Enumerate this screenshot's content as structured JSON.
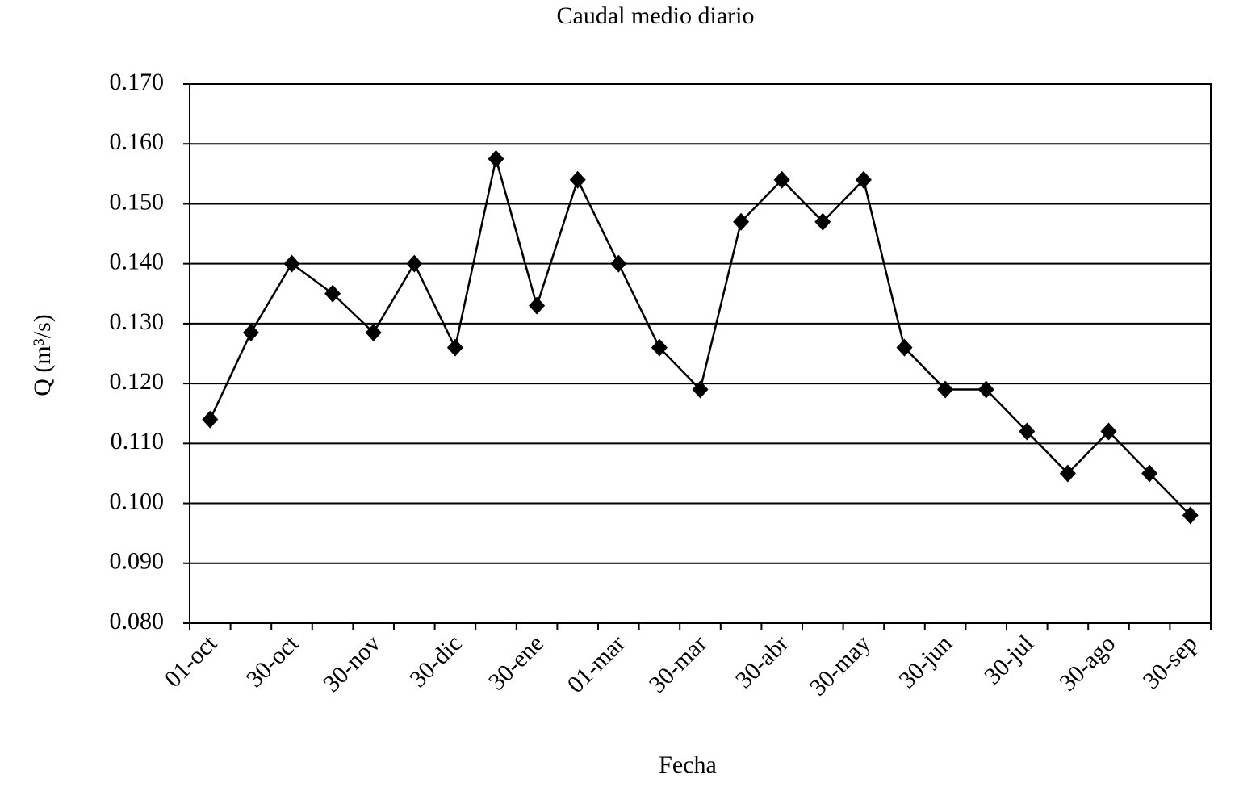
{
  "chart_data": {
    "type": "line",
    "title": "Caudal medio diario",
    "x_label": "Fecha",
    "y_label": "Q (m³/s)",
    "categories": [
      "01-oct",
      null,
      "30-oct",
      null,
      "30-nov",
      null,
      "30-dic",
      null,
      "30-ene",
      null,
      "01-mar",
      null,
      "30-mar",
      null,
      "30-abr",
      null,
      "30-may",
      null,
      "30-jun",
      null,
      "30-jul",
      null,
      "30-ago",
      null,
      "30-sep"
    ],
    "series": [
      {
        "name": "Caudal",
        "color": "#000000",
        "values": [
          0.114,
          0.1285,
          0.14,
          0.135,
          0.1285,
          0.14,
          0.126,
          0.1575,
          0.133,
          0.154,
          0.14,
          0.126,
          0.119,
          0.147,
          0.154,
          0.147,
          0.154,
          0.126,
          0.119,
          0.119,
          0.112,
          0.105,
          0.112,
          0.105,
          0.098
        ]
      }
    ],
    "ylim": [
      0.08,
      0.17
    ],
    "yticks": [
      {
        "value": 0.08,
        "label": "0.080"
      },
      {
        "value": 0.09,
        "label": "0.090"
      },
      {
        "value": 0.1,
        "label": "0.100"
      },
      {
        "value": 0.11,
        "label": "0.110"
      },
      {
        "value": 0.12,
        "label": "0.120"
      },
      {
        "value": 0.13,
        "label": "0.130"
      },
      {
        "value": 0.14,
        "label": "0.140"
      },
      {
        "value": 0.15,
        "label": "0.150"
      },
      {
        "value": 0.16,
        "label": "0.160"
      },
      {
        "value": 0.17,
        "label": "0.170"
      }
    ],
    "grid": true
  }
}
